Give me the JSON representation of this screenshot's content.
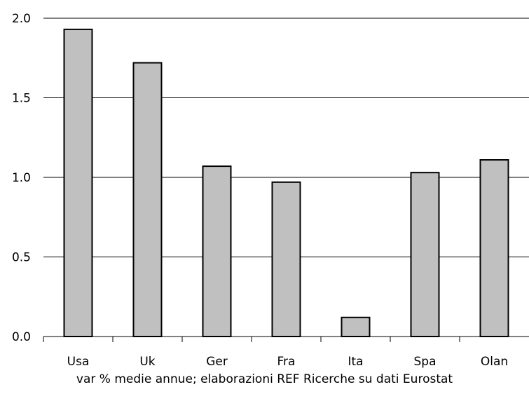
{
  "chart_data": {
    "type": "bar",
    "categories": [
      "Usa",
      "Uk",
      "Ger",
      "Fra",
      "Ita",
      "Spa",
      "Olan"
    ],
    "values": [
      1.93,
      1.72,
      1.07,
      0.97,
      0.12,
      1.03,
      1.11
    ],
    "yticks": [
      "0.0",
      "0.5",
      "1.0",
      "1.5",
      "2.0"
    ],
    "ylim": [
      0,
      2.0
    ],
    "grid": true,
    "bar_color": "#c0c0c0",
    "caption": "var % medie annue; elaborazioni REF Ricerche su dati Eurostat"
  }
}
